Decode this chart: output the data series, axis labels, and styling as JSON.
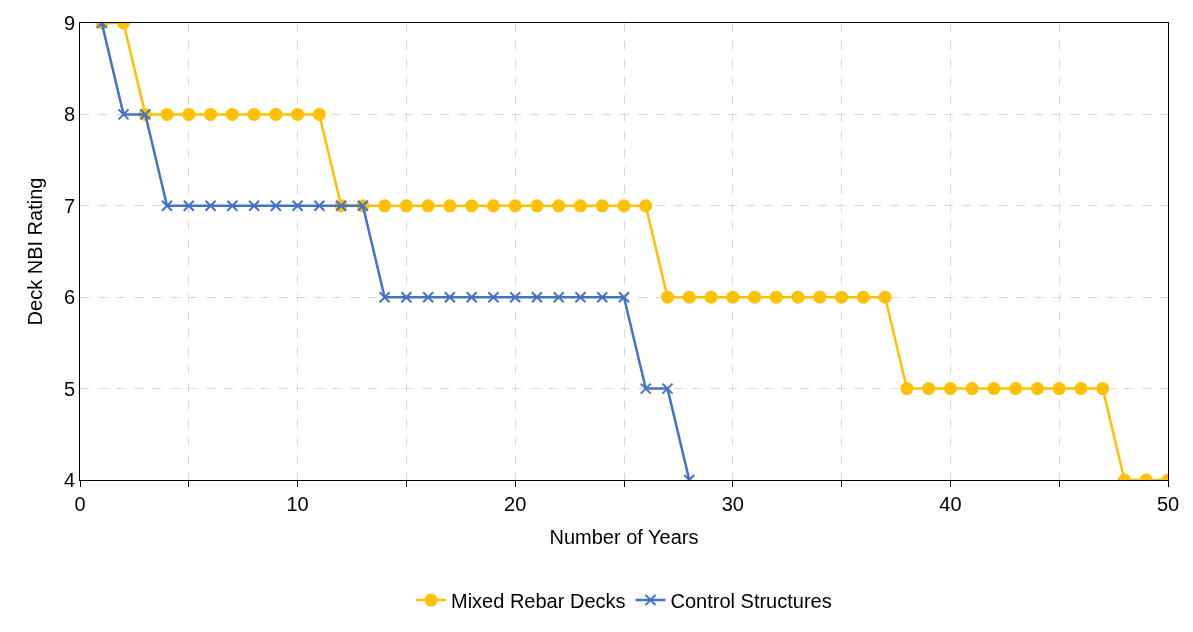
{
  "chart_data": {
    "type": "line",
    "xlabel": "Number of Years",
    "ylabel": "Deck NBI Rating",
    "xlim": [
      0,
      50
    ],
    "xticks": [
      0,
      {
        "value": 5,
        "label": null
      },
      10,
      {
        "value": 15,
        "label": null
      },
      20,
      {
        "value": 25,
        "label": null
      },
      30,
      {
        "value": 35,
        "label": null
      },
      40,
      {
        "value": 45,
        "label": null
      },
      50
    ],
    "ylim": [
      4,
      9
    ],
    "yticks": [
      4,
      5,
      6,
      7,
      8,
      9
    ],
    "grid": true,
    "legend": "bottom",
    "series": [
      {
        "name": "Mixed Rebar Decks",
        "color": "#ffc000",
        "marker": "circle",
        "x": [
          1,
          2,
          3,
          4,
          5,
          6,
          7,
          8,
          9,
          10,
          11,
          12,
          13,
          14,
          15,
          16,
          17,
          18,
          19,
          20,
          21,
          22,
          23,
          24,
          25,
          26,
          27,
          28,
          29,
          30,
          31,
          32,
          33,
          34,
          35,
          36,
          37,
          38,
          39,
          40,
          41,
          42,
          43,
          44,
          45,
          46,
          47,
          48,
          49,
          50
        ],
        "values": [
          9,
          9,
          8,
          8,
          8,
          8,
          8,
          8,
          8,
          8,
          8,
          7,
          7,
          7,
          7,
          7,
          7,
          7,
          7,
          7,
          7,
          7,
          7,
          7,
          7,
          7,
          6,
          6,
          6,
          6,
          6,
          6,
          6,
          6,
          6,
          6,
          6,
          5,
          5,
          5,
          5,
          5,
          5,
          5,
          5,
          5,
          5,
          4,
          4,
          4
        ]
      },
      {
        "name": "Control Structures",
        "color": "#4472c4",
        "marker": "cross",
        "x": [
          1,
          2,
          3,
          4,
          5,
          6,
          7,
          8,
          9,
          10,
          11,
          12,
          13,
          14,
          15,
          16,
          17,
          18,
          19,
          20,
          21,
          22,
          23,
          24,
          25,
          26,
          27,
          28
        ],
        "values": [
          9,
          8,
          8,
          7,
          7,
          7,
          7,
          7,
          7,
          7,
          7,
          7,
          7,
          6,
          6,
          6,
          6,
          6,
          6,
          6,
          6,
          6,
          6,
          6,
          6,
          5,
          5,
          4
        ]
      }
    ]
  }
}
